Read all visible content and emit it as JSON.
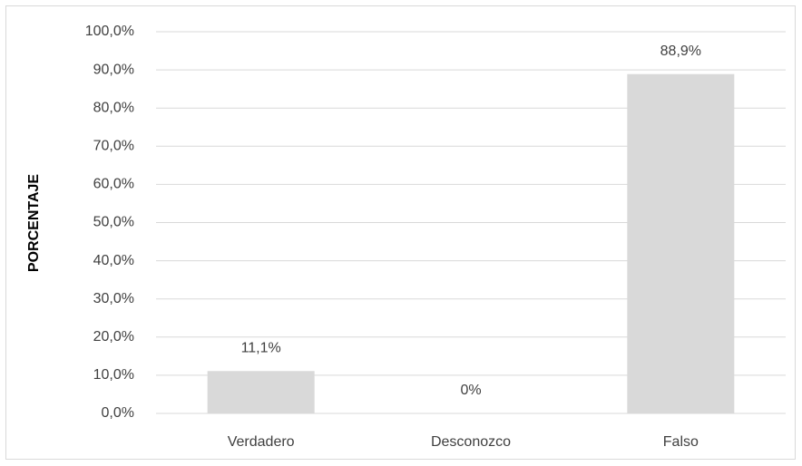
{
  "chart_data": {
    "type": "bar",
    "categories": [
      "Verdadero",
      "Desconozco",
      "Falso"
    ],
    "values": [
      11.1,
      0,
      88.9
    ],
    "value_labels": [
      "11,1%",
      "0%",
      "88,9%"
    ],
    "color": "#d9d9d9",
    "y_label": "PORCENTAJE",
    "ylim": [
      0,
      100
    ],
    "yticks": [
      {
        "value": 0,
        "label": "0,0%"
      },
      {
        "value": 10,
        "label": "10,0%"
      },
      {
        "value": 20,
        "label": "20,0%"
      },
      {
        "value": 30,
        "label": "30,0%"
      },
      {
        "value": 40,
        "label": "40,0%"
      },
      {
        "value": 50,
        "label": "50,0%"
      },
      {
        "value": 60,
        "label": "60,0%"
      },
      {
        "value": 70,
        "label": "70,0%"
      },
      {
        "value": 80,
        "label": "80,0%"
      },
      {
        "value": 90,
        "label": "90,0%"
      },
      {
        "value": 100,
        "label": "100,0%"
      }
    ],
    "grid": true
  }
}
